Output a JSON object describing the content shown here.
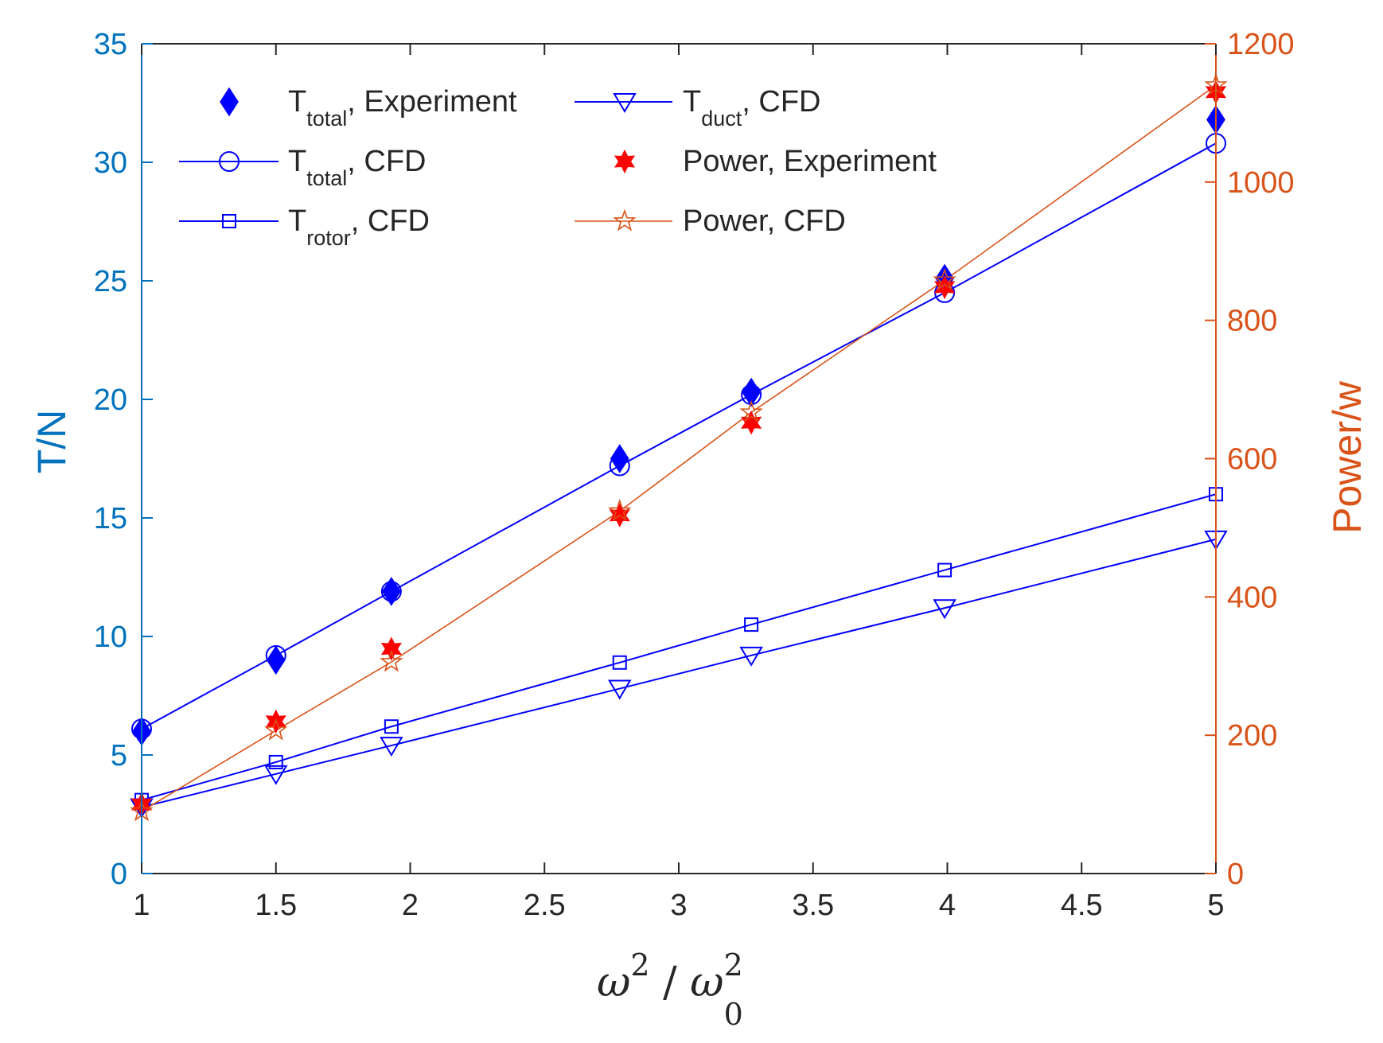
{
  "chart_data": {
    "type": "line",
    "title": "",
    "xlabel": {
      "base": "ω",
      "sup": "2",
      "sep": " / ",
      "base2": "ω",
      "sub2": "0",
      "sup2": "2"
    },
    "ylabel_left": "T/N",
    "ylabel_right": "Power/w",
    "xlim": [
      1,
      5
    ],
    "ylim_left": [
      0,
      35
    ],
    "ylim_right": [
      0,
      1200
    ],
    "xticks": [
      "1",
      "1.5",
      "2",
      "2.5",
      "3",
      "3.5",
      "4",
      "4.5",
      "5"
    ],
    "xtick_values": [
      1,
      1.5,
      2,
      2.5,
      3,
      3.5,
      4,
      4.5,
      5
    ],
    "yticks_left": [
      "0",
      "5",
      "10",
      "15",
      "20",
      "25",
      "30",
      "35"
    ],
    "ytick_left_values": [
      0,
      5,
      10,
      15,
      20,
      25,
      30,
      35
    ],
    "yticks_right": [
      "0",
      "200",
      "400",
      "600",
      "800",
      "1000",
      "1200"
    ],
    "ytick_right_values": [
      0,
      200,
      400,
      600,
      800,
      1000,
      1200
    ],
    "colors": {
      "left_axis": "#0072bd",
      "right_axis": "#d95319",
      "thrust": "#0000ff",
      "power_exp": "#ff0000",
      "power_cfd": "#d95319",
      "axes": "#262626"
    },
    "x": [
      1,
      1.5,
      1.93,
      2.78,
      3.27,
      3.99,
      5
    ],
    "series": [
      {
        "key": "t_total_exp",
        "legend": {
          "base": "T",
          "sub": "total",
          "rest": ", Experiment"
        },
        "axis": "left",
        "line": false,
        "marker": "diamond-filled",
        "color": "#0000ff",
        "values": [
          6.0,
          9.0,
          11.9,
          17.5,
          20.3,
          25.1,
          31.8
        ]
      },
      {
        "key": "t_total_cfd",
        "legend": {
          "base": "T",
          "sub": "total",
          "rest": ", CFD"
        },
        "axis": "left",
        "line": true,
        "marker": "circle",
        "color": "#0000ff",
        "values": [
          6.1,
          9.2,
          11.9,
          17.2,
          20.2,
          24.5,
          30.8
        ]
      },
      {
        "key": "t_rotor_cfd",
        "legend": {
          "base": "T",
          "sub": "rotor",
          "rest": ", CFD"
        },
        "axis": "left",
        "line": true,
        "marker": "square",
        "color": "#0000ff",
        "values": [
          3.1,
          4.7,
          6.2,
          8.9,
          10.5,
          12.8,
          16.0
        ]
      },
      {
        "key": "t_duct_cfd",
        "legend": {
          "base": "T",
          "sub": "duct",
          "rest": ", CFD"
        },
        "axis": "left",
        "line": true,
        "marker": "triangle-down",
        "color": "#0000ff",
        "values": [
          2.8,
          4.2,
          5.4,
          7.8,
          9.2,
          11.2,
          14.1
        ]
      },
      {
        "key": "power_exp",
        "legend": {
          "base": "Power, Experiment",
          "sub": "",
          "rest": ""
        },
        "axis": "right",
        "line": false,
        "marker": "hexagram-filled",
        "color": "#ff0000",
        "values": [
          100,
          220,
          325,
          518,
          652,
          848,
          1130
        ]
      },
      {
        "key": "power_cfd",
        "legend": {
          "base": "Power, CFD",
          "sub": "",
          "rest": ""
        },
        "axis": "right",
        "line": true,
        "marker": "pentagram",
        "color": "#d95319",
        "values": [
          90,
          207,
          306,
          524,
          667,
          858,
          1140
        ]
      }
    ],
    "legend_position": "top-left",
    "grid": false
  }
}
